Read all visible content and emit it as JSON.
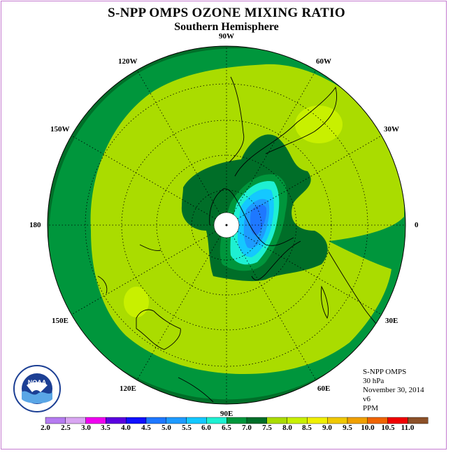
{
  "title": "S-NPP OMPS OZONE MIXING RATIO",
  "subtitle": "Southern Hemisphere",
  "longitude_labels": [
    {
      "id": "lon-90w",
      "text": "90W",
      "lon": -90
    },
    {
      "id": "lon-60w",
      "text": "60W",
      "lon": -60
    },
    {
      "id": "lon-30w",
      "text": "30W",
      "lon": -30
    },
    {
      "id": "lon-0",
      "text": "0",
      "lon": 0
    },
    {
      "id": "lon-30e",
      "text": "30E",
      "lon": 30
    },
    {
      "id": "lon-60e",
      "text": "60E",
      "lon": 60
    },
    {
      "id": "lon-90e",
      "text": "90E",
      "lon": 90
    },
    {
      "id": "lon-120e",
      "text": "120E",
      "lon": 120
    },
    {
      "id": "lon-150e",
      "text": "150E",
      "lon": 150
    },
    {
      "id": "lon-180",
      "text": "180",
      "lon": 180
    },
    {
      "id": "lon-150w",
      "text": "150W",
      "lon": -150
    },
    {
      "id": "lon-120w",
      "text": "120W",
      "lon": -120
    }
  ],
  "info": {
    "instrument": "S-NPP OMPS",
    "level": "30 hPa",
    "date": "November 30, 2014",
    "version": "v6",
    "units": "PPM"
  },
  "colorbar": {
    "labels": [
      "2.0",
      "2.5",
      "3.0",
      "3.5",
      "4.0",
      "4.5",
      "5.0",
      "5.5",
      "6.0",
      "6.5",
      "7.0",
      "7.5",
      "8.0",
      "8.5",
      "9.0",
      "9.5",
      "10.0",
      "10.5",
      "11.0"
    ],
    "colors": [
      "#b57bf0",
      "#d9a6f2",
      "#f000f0",
      "#5a00e0",
      "#1010ff",
      "#1e78ff",
      "#1e9bff",
      "#14c8ff",
      "#1ef0d2",
      "#00963c",
      "#006e28",
      "#aadc00",
      "#c8f000",
      "#f0f000",
      "#f0c800",
      "#f0a000",
      "#f06400",
      "#f00000",
      "#8c5028"
    ]
  },
  "map_legend_colors": {
    "outer_band": "#006e28",
    "mid_band": "#00963c",
    "background": "#aadc00",
    "high_patch": "#c8f000",
    "low_core": "#1e78ff"
  },
  "logo_text": "NOAA"
}
